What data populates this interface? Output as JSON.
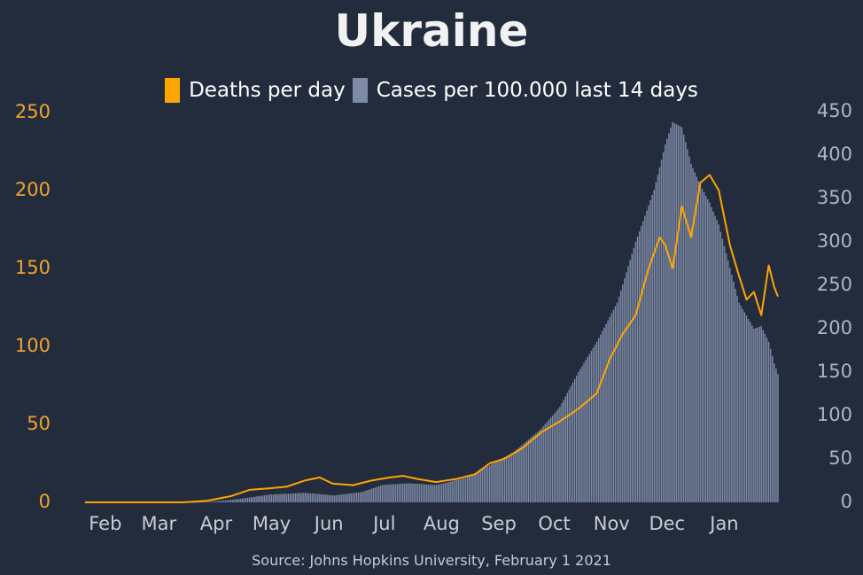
{
  "title": "Ukraine",
  "source": "Source: Johns Hopkins University, February 1 2021",
  "colors": {
    "background": "#232c3d",
    "deaths": "#ffa500",
    "cases": "#7d8ba6",
    "left_axis": "#f0a22e",
    "right_axis": "#aab5c9"
  },
  "chart_data": {
    "type": "bar",
    "x_range": [
      "2020-01-22",
      "2021-01-31"
    ],
    "x_ticks": [
      "Feb",
      "Mar",
      "Apr",
      "May",
      "Jun",
      "Jul",
      "Aug",
      "Sep",
      "Oct",
      "Nov",
      "Dec",
      "Jan"
    ],
    "y_left": {
      "label": "",
      "range": [
        0,
        250
      ],
      "ticks": [
        "0",
        "50",
        "100",
        "150",
        "200",
        "250"
      ]
    },
    "y_right": {
      "label": "",
      "range": [
        0,
        450
      ],
      "ticks": [
        "0",
        "50",
        "100",
        "150",
        "200",
        "250",
        "300",
        "350",
        "400",
        "450"
      ]
    },
    "legend": {
      "placement": "top-center"
    },
    "grid": false,
    "series": [
      {
        "name": "Deaths per day",
        "type": "line",
        "axis": "left",
        "color": "#ffa500",
        "points": [
          [
            "2020-01-22",
            0
          ],
          [
            "2020-03-15",
            0
          ],
          [
            "2020-03-28",
            1
          ],
          [
            "2020-04-10",
            4
          ],
          [
            "2020-04-20",
            8
          ],
          [
            "2020-05-01",
            9
          ],
          [
            "2020-05-10",
            10
          ],
          [
            "2020-05-20",
            14
          ],
          [
            "2020-05-28",
            16
          ],
          [
            "2020-06-04",
            12
          ],
          [
            "2020-06-15",
            11
          ],
          [
            "2020-06-25",
            14
          ],
          [
            "2020-07-05",
            16
          ],
          [
            "2020-07-12",
            17
          ],
          [
            "2020-07-20",
            15
          ],
          [
            "2020-07-30",
            13
          ],
          [
            "2020-08-10",
            15
          ],
          [
            "2020-08-20",
            18
          ],
          [
            "2020-08-28",
            25
          ],
          [
            "2020-09-05",
            28
          ],
          [
            "2020-09-15",
            35
          ],
          [
            "2020-09-25",
            45
          ],
          [
            "2020-10-05",
            52
          ],
          [
            "2020-10-15",
            60
          ],
          [
            "2020-10-25",
            70
          ],
          [
            "2020-11-01",
            92
          ],
          [
            "2020-11-08",
            108
          ],
          [
            "2020-11-15",
            120
          ],
          [
            "2020-11-22",
            150
          ],
          [
            "2020-11-28",
            170
          ],
          [
            "2020-12-01",
            165
          ],
          [
            "2020-12-05",
            150
          ],
          [
            "2020-12-10",
            190
          ],
          [
            "2020-12-15",
            170
          ],
          [
            "2020-12-20",
            205
          ],
          [
            "2020-12-25",
            210
          ],
          [
            "2020-12-30",
            200
          ],
          [
            "2021-01-05",
            165
          ],
          [
            "2021-01-10",
            145
          ],
          [
            "2021-01-14",
            130
          ],
          [
            "2021-01-18",
            135
          ],
          [
            "2021-01-22",
            120
          ],
          [
            "2021-01-26",
            152
          ],
          [
            "2021-01-29",
            138
          ],
          [
            "2021-01-31",
            132
          ]
        ]
      },
      {
        "name": "Cases per 100.000 last 14 days",
        "type": "bar",
        "axis": "right",
        "color": "#7d8ba6",
        "points": [
          [
            "2020-01-22",
            0
          ],
          [
            "2020-03-20",
            0
          ],
          [
            "2020-04-01",
            1
          ],
          [
            "2020-04-15",
            4
          ],
          [
            "2020-05-01",
            9
          ],
          [
            "2020-05-20",
            11
          ],
          [
            "2020-06-05",
            8
          ],
          [
            "2020-06-20",
            12
          ],
          [
            "2020-07-01",
            20
          ],
          [
            "2020-07-15",
            22
          ],
          [
            "2020-07-30",
            20
          ],
          [
            "2020-08-15",
            28
          ],
          [
            "2020-08-30",
            45
          ],
          [
            "2020-09-10",
            58
          ],
          [
            "2020-09-25",
            85
          ],
          [
            "2020-10-05",
            110
          ],
          [
            "2020-10-15",
            150
          ],
          [
            "2020-10-25",
            185
          ],
          [
            "2020-11-05",
            230
          ],
          [
            "2020-11-15",
            300
          ],
          [
            "2020-11-25",
            360
          ],
          [
            "2020-12-01",
            412
          ],
          [
            "2020-12-05",
            438
          ],
          [
            "2020-12-10",
            432
          ],
          [
            "2020-12-15",
            390
          ],
          [
            "2020-12-20",
            365
          ],
          [
            "2020-12-25",
            345
          ],
          [
            "2020-12-30",
            320
          ],
          [
            "2021-01-05",
            270
          ],
          [
            "2021-01-10",
            230
          ],
          [
            "2021-01-14",
            215
          ],
          [
            "2021-01-18",
            200
          ],
          [
            "2021-01-22",
            203
          ],
          [
            "2021-01-26",
            185
          ],
          [
            "2021-01-29",
            160
          ],
          [
            "2021-01-31",
            148
          ]
        ]
      }
    ]
  }
}
